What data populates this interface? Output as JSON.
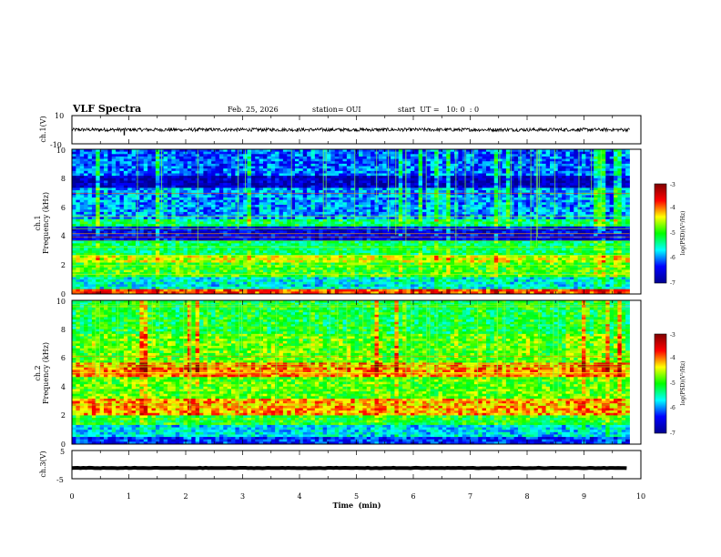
{
  "header": {
    "title": "VLF Spectra",
    "date": "Feb. 25, 2026",
    "station": "station= OUI",
    "start_ut": "start  UT =   10: 0  : 0"
  },
  "chart_data": [
    {
      "type": "line",
      "name": "ch1-waveform",
      "ylabel": "ch.1(V)",
      "ylim": [
        -10,
        10
      ],
      "yticks": [
        "10",
        "-10"
      ],
      "xlim": [
        0,
        10
      ],
      "baseline": 0,
      "noise_amplitude": 1.2,
      "spikes": [
        {
          "x": 0.92,
          "y": -4
        }
      ]
    },
    {
      "type": "heatmap",
      "name": "ch1-spectrogram",
      "ylabel": "ch.1\nFrequency  (kHz)",
      "ylim": [
        0,
        10
      ],
      "yticks": [
        "0",
        "2",
        "4",
        "6",
        "8",
        "10"
      ],
      "xlim": [
        0,
        9.8
      ],
      "colorbar": {
        "label": "log(PSD)(V²/Hz)",
        "range": [
          -7,
          -3
        ],
        "ticks": [
          "-3",
          "-4",
          "-5",
          "-6",
          "-7"
        ]
      },
      "bands": [
        {
          "from": 0,
          "to": 0.4,
          "level": -3.8
        },
        {
          "from": 0.4,
          "to": 1.2,
          "level": -5.6
        },
        {
          "from": 1.2,
          "to": 2.2,
          "level": -4.9
        },
        {
          "from": 2.2,
          "to": 2.6,
          "level": -4.5
        },
        {
          "from": 2.6,
          "to": 3.6,
          "level": -5.2
        },
        {
          "from": 3.6,
          "to": 4.6,
          "level": -6.5
        },
        {
          "from": 4.6,
          "to": 5.2,
          "level": -5.2
        },
        {
          "from": 5.2,
          "to": 7.4,
          "level": -5.9
        },
        {
          "from": 7.4,
          "to": 8.2,
          "level": -6.7
        },
        {
          "from": 8.2,
          "to": 10,
          "level": -6.1
        }
      ]
    },
    {
      "type": "heatmap",
      "name": "ch2-spectrogram",
      "ylabel": "ch.2\nFrequency  (kHz)",
      "ylim": [
        0,
        10
      ],
      "yticks": [
        "0",
        "2",
        "4",
        "6",
        "8",
        "10"
      ],
      "xlim": [
        0,
        9.8
      ],
      "colorbar": {
        "label": "log(PSD)(V²/Hz)",
        "range": [
          -7,
          -3
        ],
        "ticks": [
          "-3",
          "-4",
          "-5",
          "-6",
          "-7"
        ]
      },
      "bands": [
        {
          "from": 0,
          "to": 0.5,
          "level": -6.3
        },
        {
          "from": 0.5,
          "to": 1.3,
          "level": -5.7
        },
        {
          "from": 1.3,
          "to": 2.0,
          "level": -5.0
        },
        {
          "from": 2.0,
          "to": 3.2,
          "level": -4.1
        },
        {
          "from": 3.2,
          "to": 4.6,
          "level": -4.8
        },
        {
          "from": 4.6,
          "to": 5.6,
          "level": -4.0
        },
        {
          "from": 5.6,
          "to": 7.6,
          "level": -4.8
        },
        {
          "from": 7.6,
          "to": 10,
          "level": -5.1
        }
      ]
    },
    {
      "type": "line",
      "name": "ch3-waveform",
      "ylabel": "ch.3(V)",
      "ylim": [
        -5,
        5
      ],
      "yticks": [
        "5",
        "-5"
      ],
      "xlim": [
        0,
        10
      ],
      "baseline": -1.2,
      "noise_amplitude": 0.2,
      "xlabel": "Time  (min)",
      "xticks": [
        "0",
        "1",
        "2",
        "3",
        "4",
        "5",
        "6",
        "7",
        "8",
        "9",
        "10"
      ]
    }
  ],
  "colors": {
    "colormap": [
      "#00008f",
      "#0000ff",
      "#00ffff",
      "#00ff00",
      "#ffff00",
      "#ff0000",
      "#800000"
    ]
  }
}
